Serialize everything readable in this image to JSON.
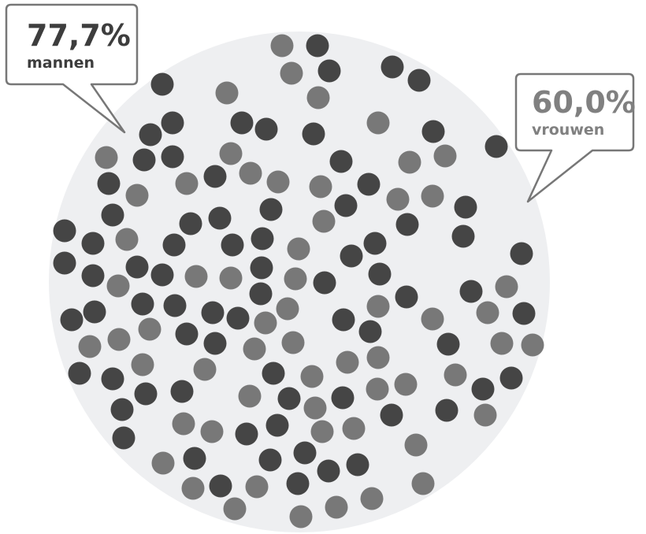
{
  "colors": {
    "background": "#ffffff",
    "circle_fill": "#eeeff1",
    "dot_dark": "#454545",
    "dot_light": "#787878",
    "callout_border": "#777777",
    "callout_text_dark": "#3d3d3d",
    "callout_text_light": "#808080"
  },
  "callouts": {
    "men": {
      "value": "77,7%",
      "label": "mannen"
    },
    "women": {
      "value": "60,0%",
      "label": "vrouwen"
    }
  }
}
